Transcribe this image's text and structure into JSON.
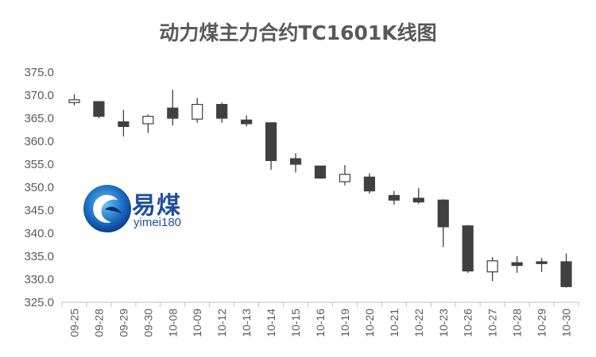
{
  "chart_data": {
    "type": "candlestick",
    "title": "动力煤主力合约TC1601K线图",
    "ylim": [
      325.0,
      375.0
    ],
    "ytick_step": 5,
    "yticks": [
      "325.0",
      "330.0",
      "335.0",
      "340.0",
      "345.0",
      "350.0",
      "355.0",
      "360.0",
      "365.0",
      "370.0",
      "375.0"
    ],
    "categories": [
      "09-25",
      "09-28",
      "09-29",
      "09-30",
      "10-08",
      "10-09",
      "10-12",
      "10-13",
      "10-14",
      "10-15",
      "10-16",
      "10-19",
      "10-20",
      "10-21",
      "10-22",
      "10-23",
      "10-26",
      "10-27",
      "10-28",
      "10-29",
      "10-30"
    ],
    "open": [
      368.4,
      368.6,
      364.2,
      363.8,
      367.2,
      364.8,
      368.0,
      364.6,
      364.0,
      356.2,
      354.6,
      351.2,
      352.2,
      348.2,
      347.6,
      347.2,
      341.6,
      331.6,
      333.6,
      333.8,
      333.8
    ],
    "close": [
      369.0,
      365.4,
      363.2,
      365.4,
      365.0,
      368.0,
      365.0,
      363.8,
      355.8,
      355.0,
      352.0,
      352.8,
      349.2,
      347.2,
      346.8,
      341.4,
      331.8,
      334.0,
      333.0,
      333.4,
      328.4
    ],
    "high": [
      370.2,
      368.6,
      366.8,
      365.8,
      371.2,
      369.4,
      368.4,
      365.6,
      364.0,
      357.4,
      354.6,
      354.8,
      353.0,
      349.2,
      349.8,
      347.4,
      341.8,
      334.8,
      335.0,
      334.6,
      335.6
    ],
    "low": [
      367.8,
      365.0,
      361.0,
      361.8,
      363.4,
      364.0,
      364.0,
      363.2,
      353.8,
      353.2,
      351.8,
      350.4,
      348.6,
      346.2,
      346.4,
      337.0,
      331.4,
      329.6,
      331.4,
      331.6,
      328.2
    ],
    "colors": {
      "down_fill": "#404040",
      "up_fill": "#ffffff",
      "stroke": "#404040",
      "axis": "#bfbfbf",
      "text": "#595959"
    },
    "grid": false,
    "legend": "none"
  },
  "watermark": {
    "name": "易煤",
    "sub": "yimei180"
  }
}
